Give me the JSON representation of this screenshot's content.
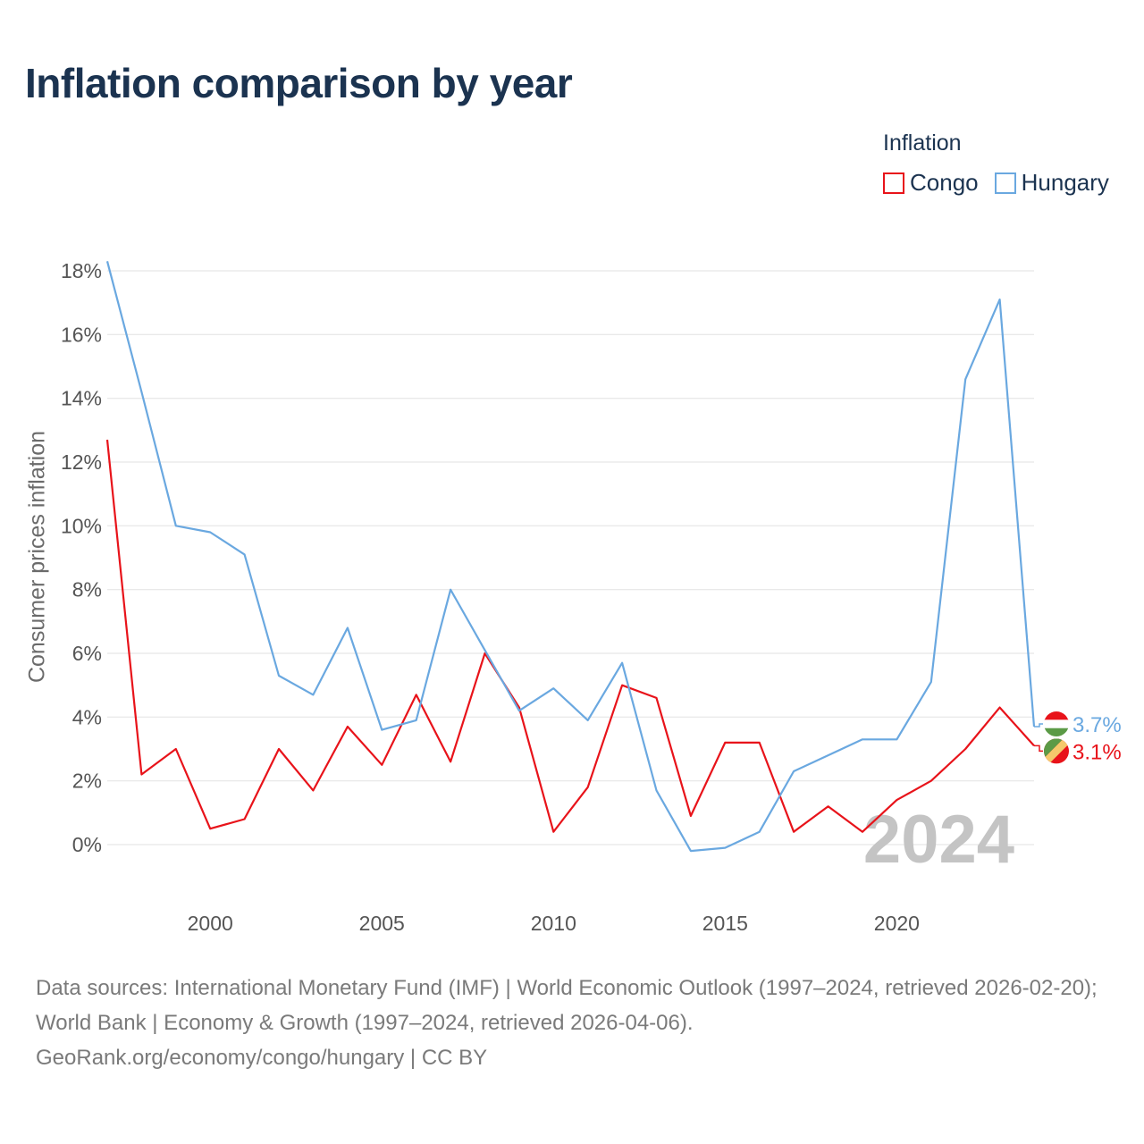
{
  "title": "Inflation comparison by year",
  "legend": {
    "title": "Inflation",
    "items": [
      {
        "label": "Congo",
        "color": "#e8131a"
      },
      {
        "label": "Hungary",
        "color": "#6aa8e0"
      }
    ]
  },
  "watermark_year": "2024",
  "footer": {
    "sources": "Data sources: International Monetary Fund (IMF) | World Economic Outlook (1997–2024, retrieved 2026-02-20); World Bank | Economy & Growth (1997–2024, retrieved 2026-04-06).",
    "credit": "GeoRank.org/economy/congo/hungary | CC BY"
  },
  "chart_data": {
    "type": "line",
    "title": "Inflation comparison by year",
    "xlabel": "",
    "ylabel": "Consumer prices inflation",
    "x": [
      1997,
      1998,
      1999,
      2000,
      2001,
      2002,
      2003,
      2004,
      2005,
      2006,
      2007,
      2008,
      2009,
      2010,
      2011,
      2012,
      2013,
      2014,
      2015,
      2016,
      2017,
      2018,
      2019,
      2020,
      2021,
      2022,
      2023,
      2024
    ],
    "xlim": [
      1997,
      2024
    ],
    "ylim": [
      -1.5,
      18.3
    ],
    "xticks": [
      2000,
      2005,
      2010,
      2015,
      2020
    ],
    "yticks": [
      0,
      2,
      4,
      6,
      8,
      10,
      12,
      14,
      16,
      18
    ],
    "ytick_labels": [
      "0%",
      "2%",
      "4%",
      "6%",
      "8%",
      "10%",
      "12%",
      "14%",
      "16%",
      "18%"
    ],
    "grid": true,
    "legend_position": "top-right",
    "series": [
      {
        "name": "Congo",
        "color": "#e8131a",
        "end_label": "3.1%",
        "values": [
          12.7,
          2.2,
          3.0,
          0.5,
          0.8,
          3.0,
          1.7,
          3.7,
          2.5,
          4.7,
          2.6,
          6.0,
          4.3,
          0.4,
          1.8,
          5.0,
          4.6,
          0.9,
          3.2,
          3.2,
          0.4,
          1.2,
          0.4,
          1.4,
          2.0,
          3.0,
          4.3,
          3.1
        ]
      },
      {
        "name": "Hungary",
        "color": "#6aa8e0",
        "end_label": "3.7%",
        "values": [
          18.3,
          14.2,
          10.0,
          9.8,
          9.1,
          5.3,
          4.7,
          6.8,
          3.6,
          3.9,
          8.0,
          6.1,
          4.2,
          4.9,
          3.9,
          5.7,
          1.7,
          -0.2,
          -0.1,
          0.4,
          2.3,
          2.8,
          3.3,
          3.3,
          5.1,
          14.6,
          17.1,
          3.7
        ]
      }
    ]
  }
}
